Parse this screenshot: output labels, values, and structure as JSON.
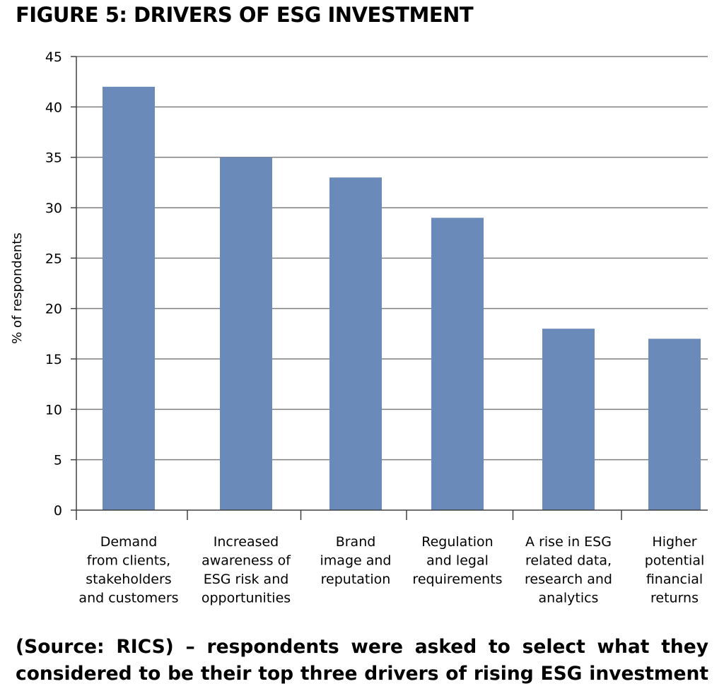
{
  "figure": {
    "title": "FIGURE 5: DRIVERS OF ESG INVESTMENT",
    "source_line_1": "(Source: RICS) – respondents were asked to select what they",
    "source_line_2": "considered to be their top three drivers of rising ESG investment"
  },
  "colors": {
    "bar": "#6a8ab9",
    "grid": "#7f7f7f",
    "axis": "#404040"
  },
  "chart_data": {
    "type": "bar",
    "title": "",
    "xlabel": "",
    "ylabel": "% of respondents",
    "ylim": [
      0,
      45
    ],
    "yticks": [
      0,
      5,
      10,
      15,
      20,
      25,
      30,
      35,
      40,
      45
    ],
    "grid": true,
    "categories": [
      [
        "Demand",
        "from clients,",
        "stakeholders",
        "and customers"
      ],
      [
        "Increased",
        "awareness of",
        "ESG risk and",
        "opportunities"
      ],
      [
        "Brand",
        "image and",
        "reputation"
      ],
      [
        "Regulation",
        "and legal",
        "requirements"
      ],
      [
        "A rise in ESG",
        "related data,",
        "research and",
        "analytics"
      ],
      [
        "Higher",
        "potential",
        "financial",
        "returns"
      ]
    ],
    "values": [
      42,
      35,
      33,
      29,
      18,
      17
    ]
  }
}
